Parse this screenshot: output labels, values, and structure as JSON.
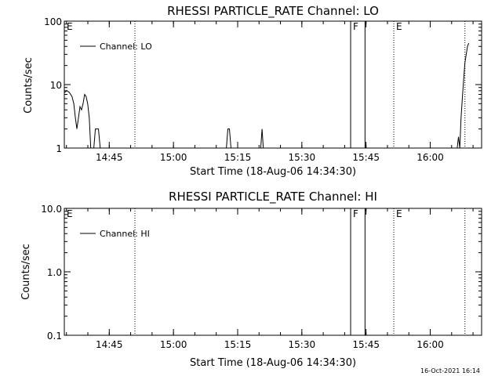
{
  "footer": {
    "timestamp": "16-Oct-2021 16:14"
  },
  "chart_data": [
    {
      "type": "line",
      "title": "RHESSI PARTICLE_RATE Channel: LO",
      "xlabel": "Start Time (18-Aug-06 14:34:30)",
      "ylabel": "Counts/sec",
      "yscale": "log",
      "ylim": [
        1,
        100
      ],
      "yticks": [
        1,
        10,
        100
      ],
      "ytick_labels": [
        "1",
        "10",
        "100"
      ],
      "xlim": [
        14.575,
        16.2
      ],
      "xticks": [
        14.75,
        15.0,
        15.25,
        15.5,
        15.75,
        16.0
      ],
      "xtick_labels": [
        "14:45",
        "15:00",
        "15:15",
        "15:30",
        "15:45",
        "16:00"
      ],
      "legend": {
        "label": "Channel: LO",
        "placement": "top-left"
      },
      "series": [
        {
          "name": "Channel: LO",
          "x": [
            14.575,
            14.585,
            14.595,
            14.605,
            14.612,
            14.618,
            14.624,
            14.63,
            14.636,
            14.642,
            14.648,
            14.654,
            14.66,
            14.666,
            14.672,
            14.678,
            14.684,
            14.69,
            14.696,
            14.702,
            14.708,
            14.715,
            14.73,
            14.732,
            14.8,
            14.8,
            15.2,
            15.206,
            15.212,
            15.218,
            15.224,
            15.335,
            15.34,
            15.345,
            15.35,
            15.355,
            16.105,
            16.11,
            16.115,
            16.12,
            16.125,
            16.13,
            16.135,
            16.14,
            16.145,
            16.15
          ],
          "y": [
            7.5,
            8,
            7.5,
            6.5,
            5,
            3,
            2,
            3,
            4.5,
            4,
            5,
            7,
            6.5,
            5,
            3,
            1,
            1,
            1,
            2,
            2,
            2,
            1,
            1,
            1,
            1,
            1,
            1,
            1,
            2,
            2,
            1,
            1,
            1,
            2,
            1,
            1,
            1,
            1.5,
            1,
            3,
            6,
            12,
            22,
            30,
            40,
            45
          ]
        }
      ],
      "markers": [
        {
          "label": "E",
          "x": 14.575,
          "style": "dotted"
        },
        {
          "label": "",
          "x": 14.85,
          "style": "dotted"
        },
        {
          "label": "F",
          "x": 15.69,
          "style": "solid"
        },
        {
          "label": "",
          "x": 15.746,
          "style": "solid"
        },
        {
          "label": "E",
          "x": 15.858,
          "style": "dotted"
        },
        {
          "label": "",
          "x": 16.135,
          "style": "dotted"
        }
      ]
    },
    {
      "type": "line",
      "title": "RHESSI PARTICLE_RATE Channel: HI",
      "xlabel": "Start Time (18-Aug-06 14:34:30)",
      "ylabel": "Counts/sec",
      "yscale": "log",
      "ylim": [
        0.1,
        10
      ],
      "yticks": [
        0.1,
        1,
        10
      ],
      "ytick_labels": [
        "0.1",
        "1.0",
        "10.0"
      ],
      "xlim": [
        14.575,
        16.2
      ],
      "xticks": [
        14.75,
        15.0,
        15.25,
        15.5,
        15.75,
        16.0
      ],
      "xtick_labels": [
        "14:45",
        "15:00",
        "15:15",
        "15:30",
        "15:45",
        "16:00"
      ],
      "legend": {
        "label": "Channel: HI",
        "placement": "top-left"
      },
      "series": [
        {
          "name": "Channel: HI",
          "x": [],
          "y": []
        }
      ],
      "markers": [
        {
          "label": "E",
          "x": 14.575,
          "style": "dotted"
        },
        {
          "label": "",
          "x": 14.85,
          "style": "dotted"
        },
        {
          "label": "F",
          "x": 15.69,
          "style": "solid"
        },
        {
          "label": "",
          "x": 15.746,
          "style": "solid"
        },
        {
          "label": "E",
          "x": 15.858,
          "style": "dotted"
        },
        {
          "label": "",
          "x": 16.135,
          "style": "dotted"
        }
      ]
    }
  ]
}
